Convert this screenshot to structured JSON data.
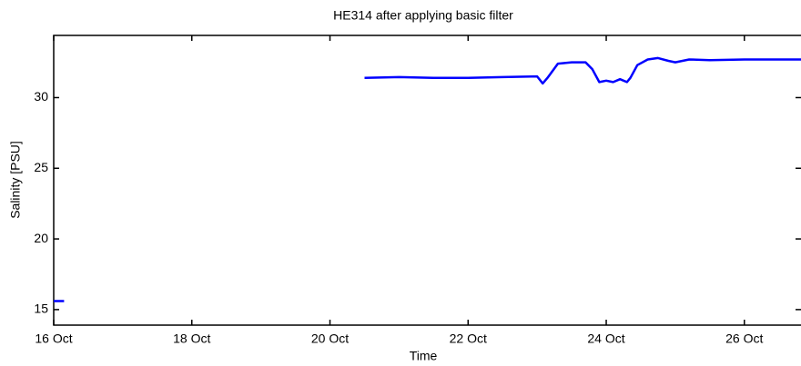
{
  "chart_data": {
    "type": "line",
    "title": "HE314 after applying basic filter",
    "xlabel": "Time",
    "ylabel": "Salinity [PSU]",
    "x": [
      16.0,
      16.15,
      null,
      20.5,
      21.0,
      21.5,
      22.0,
      22.5,
      23.0,
      23.08,
      23.15,
      23.3,
      23.5,
      23.7,
      23.8,
      23.9,
      24.0,
      24.1,
      24.2,
      24.3,
      24.35,
      24.45,
      24.6,
      24.75,
      24.9,
      25.0,
      25.2,
      25.5,
      26.0,
      26.5,
      26.82
    ],
    "series": [
      {
        "name": "Salinity",
        "color": "#0000ff",
        "values": [
          15.6,
          15.6,
          null,
          31.4,
          31.45,
          31.4,
          31.4,
          31.45,
          31.5,
          31.0,
          31.4,
          32.4,
          32.5,
          32.5,
          32.0,
          31.1,
          31.2,
          31.1,
          31.3,
          31.1,
          31.4,
          32.3,
          32.7,
          32.8,
          32.6,
          32.5,
          32.7,
          32.65,
          32.7,
          32.7,
          32.7
        ]
      }
    ],
    "xlim": [
      16,
      26.82
    ],
    "xticks": [
      {
        "value": 16,
        "label": "16 Oct"
      },
      {
        "value": 18,
        "label": "18 Oct"
      },
      {
        "value": 20,
        "label": "20 Oct"
      },
      {
        "value": 22,
        "label": "22 Oct"
      },
      {
        "value": 24,
        "label": "24 Oct"
      },
      {
        "value": 26,
        "label": "26 Oct"
      }
    ],
    "ylim": [
      13.9,
      34.4
    ],
    "yticks": [
      15,
      20,
      25,
      30
    ],
    "grid": false
  }
}
